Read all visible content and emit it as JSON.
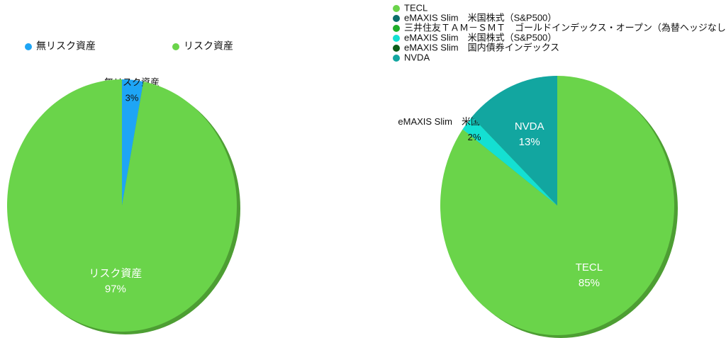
{
  "chart_data": [
    {
      "type": "pie",
      "categories": [
        "無リスク資産",
        "リスク資産"
      ],
      "values": [
        3,
        97
      ],
      "value_labels": [
        "3%",
        "97%"
      ],
      "colors": [
        "#1ea5f5",
        "#6ad44a"
      ],
      "legend": "top"
    },
    {
      "type": "pie",
      "categories": [
        "TECL",
        "eMAXIS Slim　米国株式（S&P500）",
        "三井住友ＴＡＭ－ＳＭＴ　ゴールドインデックス・オープン（為替ヘッジなし）",
        "eMAXIS Slim　米国株式（S&P500）",
        "eMAXIS Slim　国内債券インデックス",
        "NVDA"
      ],
      "values": [
        85,
        0,
        0,
        2,
        0,
        13
      ],
      "value_labels": [
        "85%",
        null,
        null,
        "2%",
        null,
        "13%"
      ],
      "colors": [
        "#6ad44a",
        "#0a6e6a",
        "#1fae2a",
        "#14e0d2",
        "#0d5c18",
        "#12a6a0"
      ],
      "legend": "top-left"
    }
  ]
}
